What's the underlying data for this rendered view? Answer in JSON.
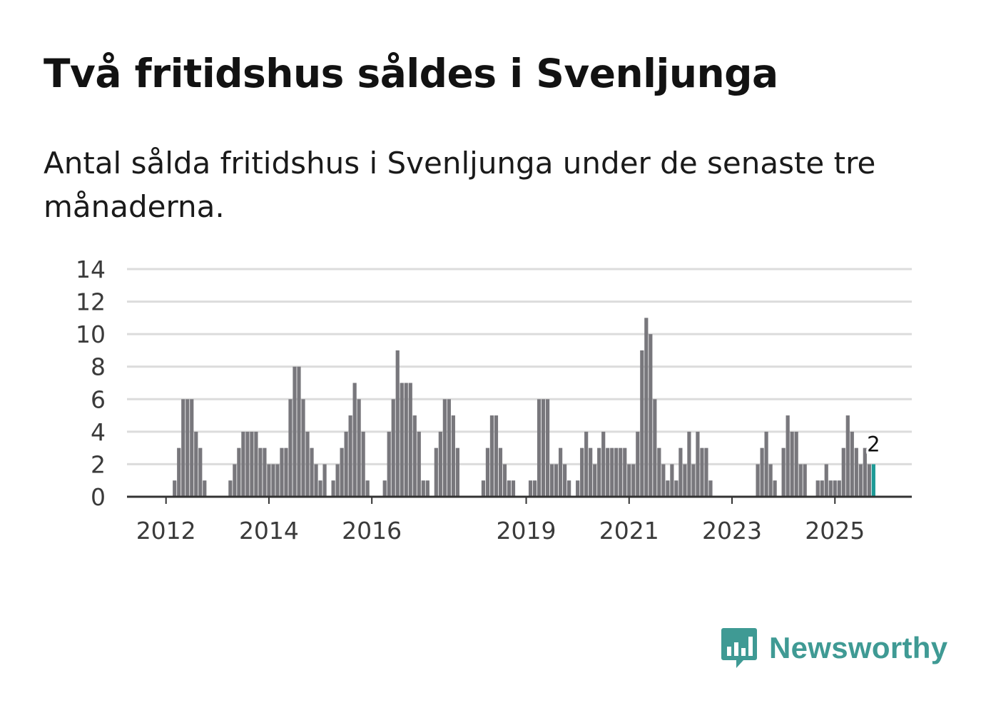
{
  "title": "Två fritidshus såldes i Svenljunga",
  "subtitle": "Antal sålda fritidshus i Svenljunga under de senaste tre månaderna.",
  "brand": {
    "name": "Newsworthy",
    "color": "#3f9a94",
    "icon": "chart-bubble-icon"
  },
  "chart_data": {
    "type": "bar",
    "bar_color": "#78777c",
    "highlight_color": "#1d9a96",
    "grid": true,
    "ylim": [
      0,
      14
    ],
    "yticks": [
      0,
      2,
      4,
      6,
      8,
      10,
      12,
      14
    ],
    "xlabel": "",
    "ylabel": "",
    "xticks": [
      {
        "label": "2012",
        "index": 9
      },
      {
        "label": "2014",
        "index": 33
      },
      {
        "label": "2016",
        "index": 57
      },
      {
        "label": "2019",
        "index": 93
      },
      {
        "label": "2021",
        "index": 117
      },
      {
        "label": "2023",
        "index": 141
      },
      {
        "label": "2025",
        "index": 165
      }
    ],
    "values": [
      0,
      0,
      0,
      0,
      0,
      0,
      0,
      0,
      0,
      0,
      0,
      1,
      3,
      6,
      6,
      6,
      4,
      3,
      1,
      0,
      0,
      0,
      0,
      0,
      1,
      2,
      3,
      4,
      4,
      4,
      4,
      3,
      3,
      2,
      2,
      2,
      3,
      3,
      6,
      8,
      8,
      6,
      4,
      3,
      2,
      1,
      2,
      0,
      1,
      2,
      3,
      4,
      5,
      7,
      6,
      4,
      1,
      0,
      0,
      0,
      1,
      4,
      6,
      9,
      7,
      7,
      7,
      5,
      4,
      1,
      1,
      0,
      3,
      4,
      6,
      6,
      5,
      3,
      0,
      0,
      0,
      0,
      0,
      1,
      3,
      5,
      5,
      3,
      2,
      1,
      1,
      0,
      0,
      0,
      1,
      1,
      6,
      6,
      6,
      2,
      2,
      3,
      2,
      1,
      0,
      1,
      3,
      4,
      3,
      2,
      3,
      4,
      3,
      3,
      3,
      3,
      3,
      2,
      2,
      4,
      9,
      11,
      10,
      6,
      3,
      2,
      1,
      2,
      1,
      3,
      2,
      4,
      2,
      4,
      3,
      3,
      1,
      0,
      0,
      0,
      0,
      0,
      0,
      0,
      0,
      0,
      0,
      2,
      3,
      4,
      2,
      1,
      0,
      3,
      5,
      4,
      4,
      2,
      2,
      0,
      0,
      1,
      1,
      2,
      1,
      1,
      1,
      3,
      5,
      4,
      3,
      2,
      3,
      2,
      2
    ],
    "highlight": {
      "index": 174,
      "label": "2"
    }
  }
}
